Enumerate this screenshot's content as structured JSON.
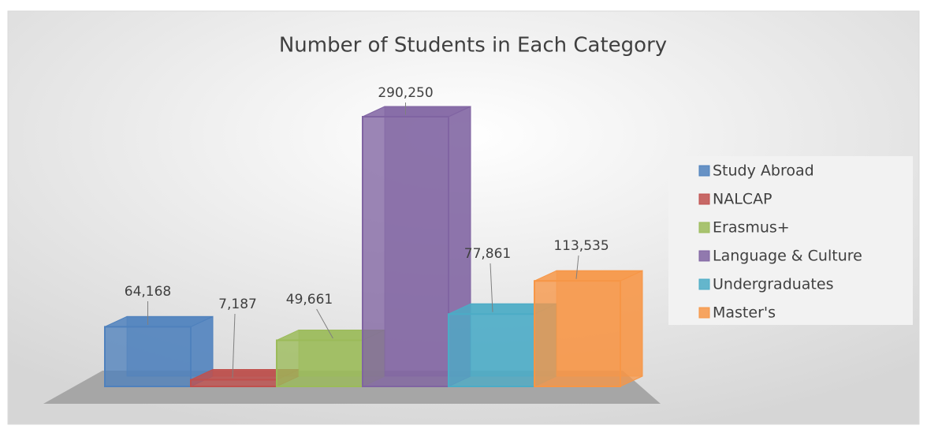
{
  "chart_data": {
    "type": "bar3d",
    "title": "Number of Students in Each Category",
    "categories": [
      null
    ],
    "series": [
      {
        "name": "Study Abroad",
        "color": "#4f81bd",
        "values": [
          64168
        ],
        "value_labels": [
          "64,168"
        ]
      },
      {
        "name": "NALCAP",
        "color": "#c0504d",
        "values": [
          7187
        ],
        "value_labels": [
          "7,187"
        ]
      },
      {
        "name": "Erasmus+",
        "color": "#9bbb59",
        "values": [
          49661
        ],
        "value_labels": [
          "49,661"
        ]
      },
      {
        "name": "Language & Culture",
        "color": "#8064a2",
        "values": [
          290250
        ],
        "value_labels": [
          "290,250"
        ]
      },
      {
        "name": "Undergraduates",
        "color": "#4bacc6",
        "values": [
          77861
        ],
        "value_labels": [
          "77,861"
        ]
      },
      {
        "name": "Master's",
        "color": "#f79646",
        "values": [
          113535
        ],
        "value_labels": [
          "113,535"
        ]
      }
    ],
    "ylim": [
      0,
      300000
    ],
    "legend": "right"
  }
}
